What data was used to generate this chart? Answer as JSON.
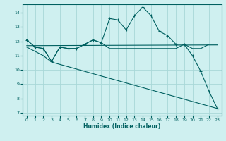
{
  "xlabel": "Humidex (Indice chaleur)",
  "xlim": [
    -0.5,
    23.5
  ],
  "ylim": [
    6.8,
    14.6
  ],
  "yticks": [
    7,
    8,
    9,
    10,
    11,
    12,
    13,
    14
  ],
  "xticks": [
    0,
    1,
    2,
    3,
    4,
    5,
    6,
    7,
    8,
    9,
    10,
    11,
    12,
    13,
    14,
    15,
    16,
    17,
    18,
    19,
    20,
    21,
    22,
    23
  ],
  "bg_color": "#cff0f0",
  "grid_color": "#a8d8d8",
  "line_color": "#006060",
  "line1_x": [
    0,
    1,
    2,
    3,
    4,
    5,
    6,
    7,
    8,
    9,
    10,
    11,
    12,
    13,
    14,
    15,
    16,
    17,
    18,
    19,
    20,
    21,
    22,
    23
  ],
  "line1_y": [
    12.1,
    11.6,
    11.5,
    10.6,
    11.6,
    11.5,
    11.5,
    11.8,
    12.1,
    11.9,
    13.6,
    13.5,
    12.8,
    13.8,
    14.4,
    13.8,
    12.7,
    12.4,
    11.8,
    11.8,
    11.0,
    9.9,
    8.5,
    7.3
  ],
  "line2_x": [
    0,
    1,
    2,
    3,
    4,
    5,
    6,
    7,
    8,
    9,
    10,
    11,
    12,
    13,
    14,
    15,
    16,
    17,
    18,
    19,
    20,
    21,
    22,
    23
  ],
  "line2_y": [
    12.1,
    11.6,
    11.5,
    10.6,
    11.6,
    11.5,
    11.5,
    11.8,
    12.1,
    11.9,
    11.5,
    11.5,
    11.5,
    11.5,
    11.5,
    11.5,
    11.5,
    11.5,
    11.5,
    11.8,
    11.5,
    11.5,
    11.8,
    11.8
  ],
  "line3_x": [
    0,
    23
  ],
  "line3_y": [
    11.7,
    11.75
  ],
  "line4_x": [
    0,
    2,
    3,
    23
  ],
  "line4_y": [
    11.6,
    11.0,
    10.55,
    7.3
  ]
}
